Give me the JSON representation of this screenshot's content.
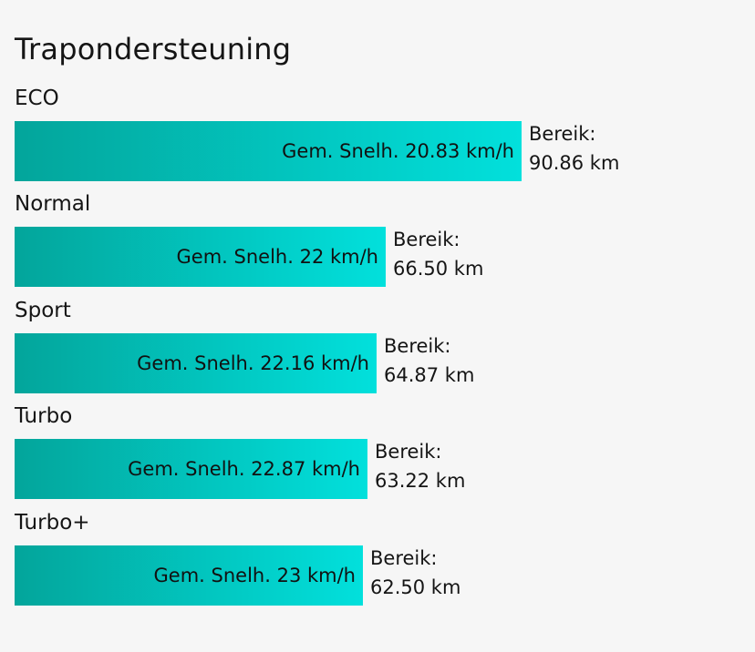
{
  "chart_data": {
    "type": "bar",
    "orientation": "horizontal",
    "title": "Trapondersteuning",
    "categories": [
      "ECO",
      "Normal",
      "Sport",
      "Turbo",
      "Turbo+"
    ],
    "values": [
      90.86,
      66.5,
      64.87,
      63.22,
      62.5
    ],
    "speed_prefix": "Gem. Snelh.",
    "speed_unit": "km/h",
    "range_label": "Bereik:",
    "range_unit": "km",
    "bars": [
      {
        "mode": "ECO",
        "speed": "20.83",
        "range": "90.86"
      },
      {
        "mode": "Normal",
        "speed": "22",
        "range": "66.50"
      },
      {
        "mode": "Sport",
        "speed": "22.16",
        "range": "64.87"
      },
      {
        "mode": "Turbo",
        "speed": "22.87",
        "range": "63.22"
      },
      {
        "mode": "Turbo+",
        "speed": "23",
        "range": "62.50"
      }
    ],
    "colors": {
      "gradient_start": "#03a59b",
      "gradient_end": "#02e0dc"
    }
  }
}
